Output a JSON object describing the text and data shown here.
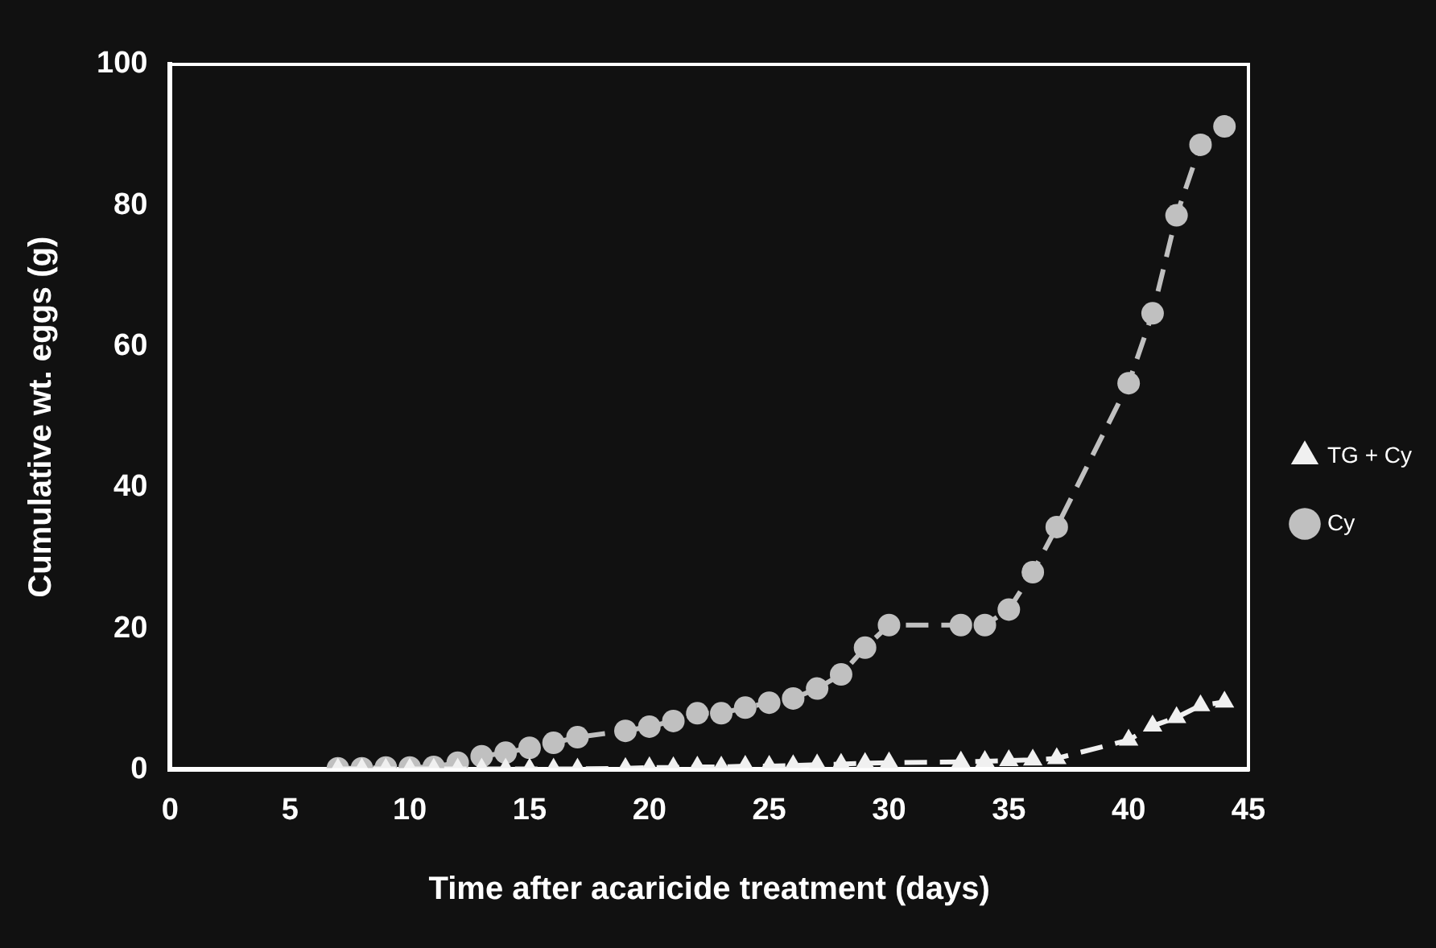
{
  "chart_data": {
    "type": "line",
    "xlabel": "Time after acaricide treatment (days)",
    "ylabel": "Cumulative wt. eggs (g)",
    "x": [
      7,
      8,
      9,
      10,
      11,
      12,
      13,
      14,
      15,
      16,
      17,
      19,
      20,
      21,
      22,
      23,
      24,
      25,
      26,
      27,
      28,
      29,
      30,
      33,
      34,
      35,
      36,
      37,
      40,
      41,
      42,
      43,
      44
    ],
    "series": [
      {
        "name": "Cy",
        "color": "#c0c0c0",
        "marker": "circle",
        "values": [
          0.2,
          0.2,
          0.3,
          0.3,
          0.4,
          1.0,
          1.9,
          2.4,
          3.1,
          3.8,
          4.6,
          5.5,
          6.1,
          6.9,
          8.0,
          8.0,
          8.8,
          9.5,
          10.1,
          11.5,
          13.5,
          17.3,
          20.5,
          20.5,
          20.5,
          22.7,
          28.0,
          34.4,
          54.8,
          64.7,
          78.6,
          88.6,
          91.2
        ]
      },
      {
        "name": "TG + Cy",
        "color": "#f0f0f0",
        "marker": "triangle",
        "values": [
          0.1,
          0.1,
          0.1,
          0.1,
          0.1,
          0.1,
          0.1,
          0.1,
          0.1,
          0.1,
          0.1,
          0.2,
          0.3,
          0.3,
          0.4,
          0.4,
          0.5,
          0.5,
          0.6,
          0.7,
          0.8,
          0.9,
          1.0,
          1.1,
          1.2,
          1.3,
          1.4,
          1.6,
          4.2,
          6.2,
          7.4,
          9.1,
          9.6
        ]
      }
    ],
    "line_style": "dashed",
    "xlim": [
      0,
      45
    ],
    "xticks": [
      0,
      5,
      10,
      15,
      20,
      25,
      30,
      35,
      40,
      45
    ],
    "ylim": [
      0,
      100
    ],
    "yticks": [
      0,
      20,
      40,
      60,
      80,
      100
    ],
    "grid": false,
    "legend": "right"
  }
}
